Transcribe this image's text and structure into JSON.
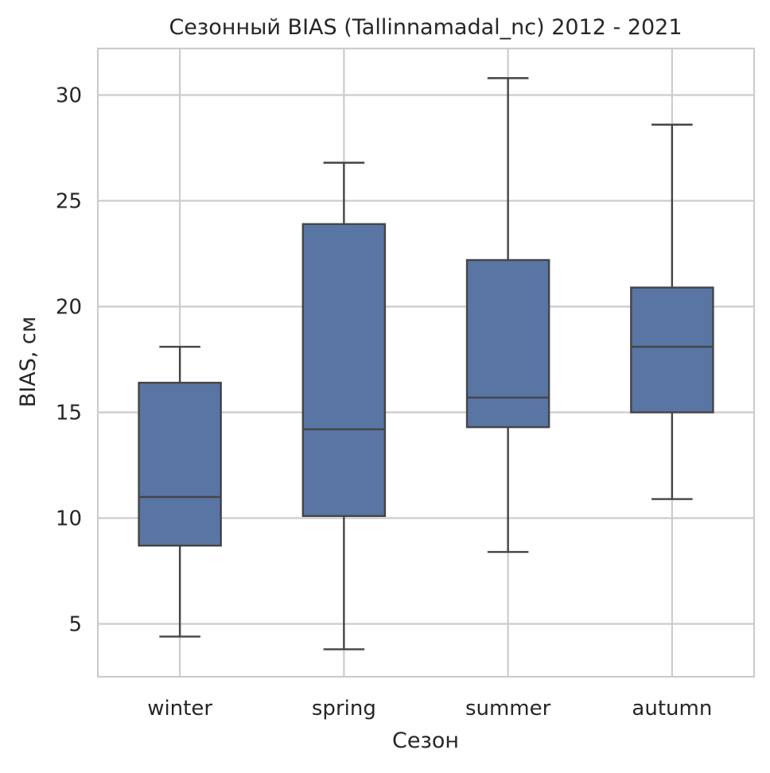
{
  "chart_data": {
    "type": "box",
    "title": "Сезонный BIAS (Tallinnamadal_nc) 2012 - 2021",
    "xlabel": "Сезон",
    "ylabel": "BIAS, см",
    "categories": [
      "winter",
      "spring",
      "summer",
      "autumn"
    ],
    "ylim": [
      2.5,
      32.2
    ],
    "yticks": [
      5,
      10,
      15,
      20,
      25,
      30
    ],
    "grid": true,
    "box_color": "#5875a4",
    "edge_color": "#454545",
    "boxes": [
      {
        "category": "winter",
        "whisker_low": 4.4,
        "q1": 8.7,
        "median": 11.0,
        "q3": 16.4,
        "whisker_high": 18.1
      },
      {
        "category": "spring",
        "whisker_low": 3.8,
        "q1": 10.1,
        "median": 14.2,
        "q3": 23.9,
        "whisker_high": 26.8
      },
      {
        "category": "summer",
        "whisker_low": 8.4,
        "q1": 14.3,
        "median": 15.7,
        "q3": 22.2,
        "whisker_high": 30.8
      },
      {
        "category": "autumn",
        "whisker_low": 10.9,
        "q1": 15.0,
        "median": 18.1,
        "q3": 20.9,
        "whisker_high": 28.6
      }
    ]
  }
}
